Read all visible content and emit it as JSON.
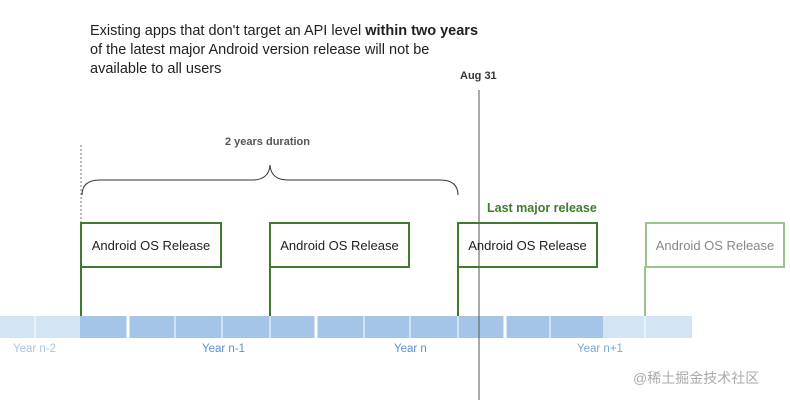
{
  "intro": {
    "text_before": "Existing apps that don't target an API level ",
    "text_bold": "within two years",
    "text_after": " of the latest major Android version release will not be available to all users"
  },
  "marker": {
    "label": "Aug 31"
  },
  "duration": {
    "label": "2 years duration"
  },
  "last_release_label": "Last major release",
  "releases": [
    {
      "label": "Android OS Release"
    },
    {
      "label": "Android OS Release"
    },
    {
      "label": "Android OS Release"
    },
    {
      "label": "Android OS Release"
    }
  ],
  "years": [
    "Year n-2",
    "Year n-1",
    "Year n",
    "Year n+1"
  ],
  "watermark": "@稀土掘金技术社区",
  "colors": {
    "release_green": "#3f7a2e",
    "future_green": "#9cc48f",
    "bar_blue": "#a4c5e8",
    "bar_light": "#d3e4f5",
    "year_text": "#5b8fd0"
  }
}
